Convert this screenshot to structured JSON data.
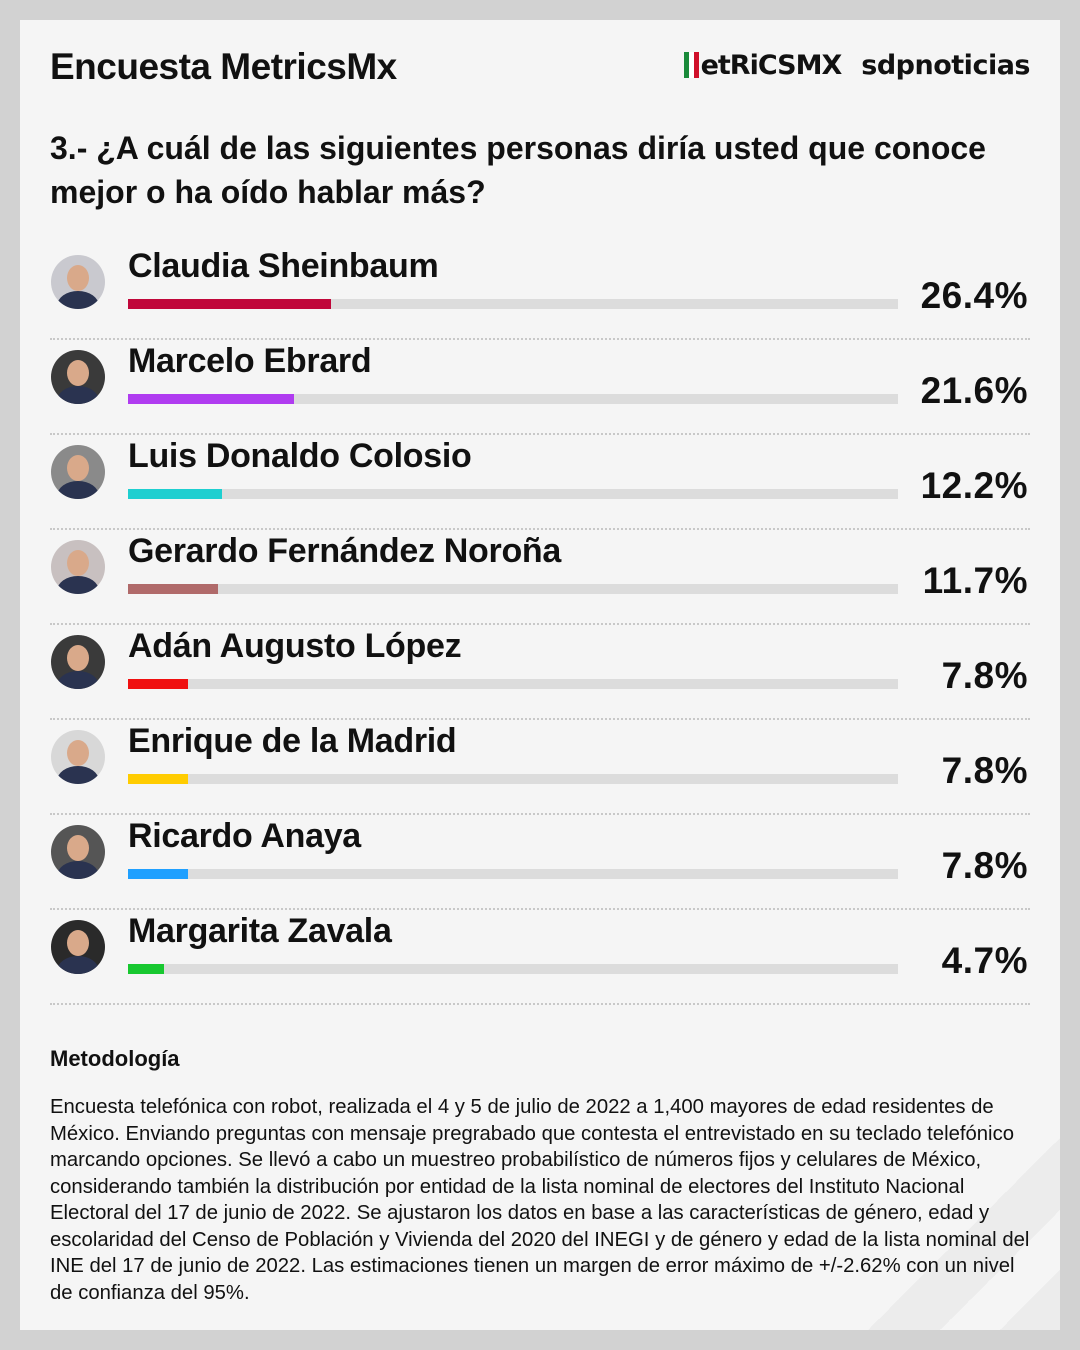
{
  "header": {
    "title": "Encuesta MetricsMx",
    "logo_metrics": "etRiCSMX",
    "logo_sdp": "sdpnoticias"
  },
  "chart_data": {
    "type": "bar",
    "title": "3.- ¿A cuál de las siguientes personas diría usted que conoce mejor o ha oído hablar más?",
    "categories": [
      "Claudia Sheinbaum",
      "Marcelo Ebrard",
      "Luis Donaldo Colosio",
      "Gerardo Fernández Noroña",
      "Adán Augusto López",
      "Enrique de la Madrid",
      "Ricardo Anaya",
      "Margarita Zavala"
    ],
    "values": [
      26.4,
      21.6,
      12.2,
      11.7,
      7.8,
      7.8,
      7.8,
      4.7
    ],
    "labels": [
      "26.4%",
      "21.6%",
      "12.2%",
      "11.7%",
      "7.8%",
      "7.8%",
      "7.8%",
      "4.7%"
    ],
    "colors": [
      "#c0073a",
      "#b03cf0",
      "#1ecfd0",
      "#b06a6a",
      "#f01010",
      "#ffcc00",
      "#1fa0ff",
      "#18c830"
    ],
    "xlim": [
      0,
      100
    ],
    "orientation": "horizontal"
  },
  "methodology": {
    "title": "Metodología",
    "text": "Encuesta telefónica con robot, realizada el 4 y 5 de julio de 2022 a 1,400 mayores de edad residentes de México. Enviando preguntas con mensaje pregrabado que contesta el entrevistado en su teclado telefónico marcando opciones. Se llevó a cabo un muestreo probabilístico de números fijos y celulares de México, considerando también la distribución por entidad de la lista nominal de electores del Instituto Nacional Electoral del 17 de junio de 2022. Se ajustaron los datos en base a las características de género, edad y escolaridad del Censo de Población y Vivienda del 2020 del INEGI y de género y edad de la lista nominal del INE del 17 de junio de 2022. Las estimaciones tienen un margen de error máximo de +/-2.62% con un nivel de confianza del 95%."
  }
}
